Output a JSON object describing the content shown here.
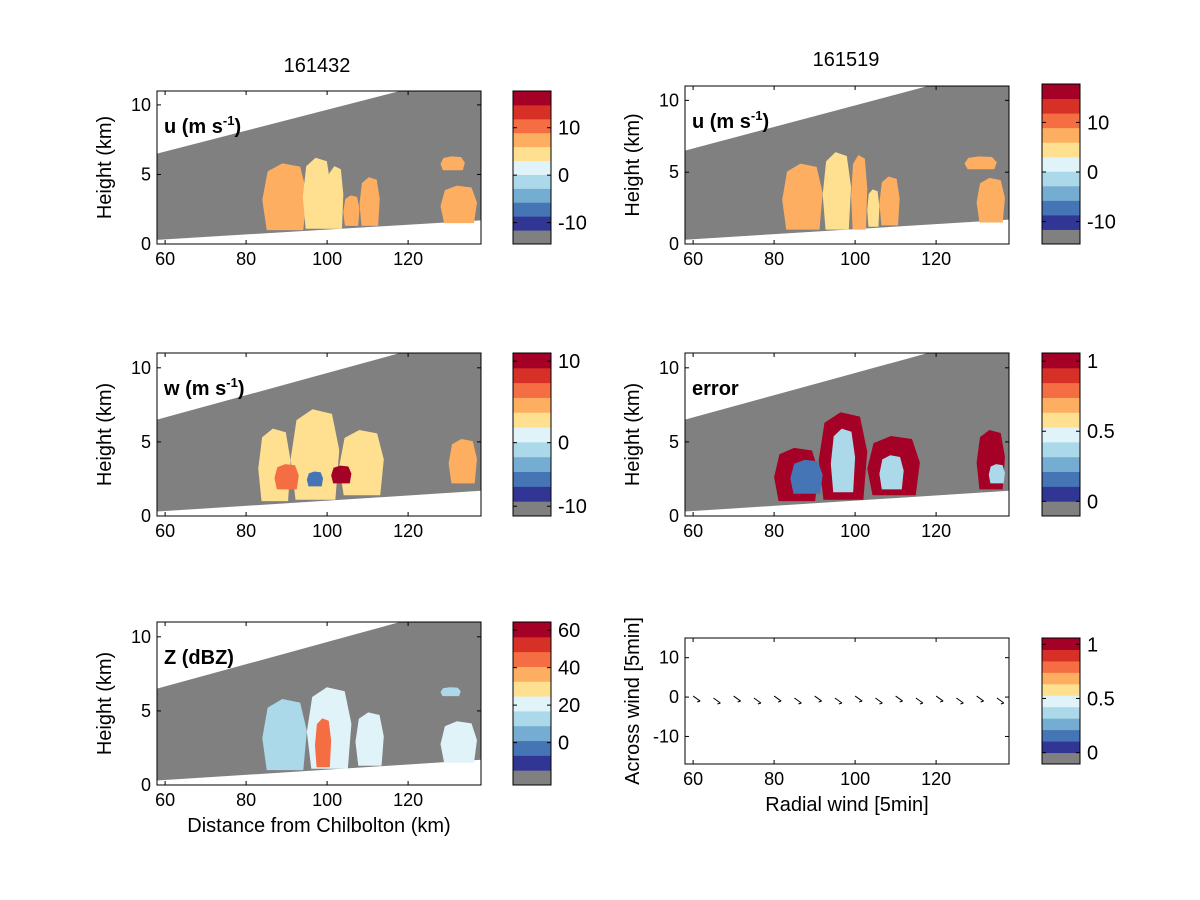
{
  "figure": {
    "column_titles": [
      "161432",
      "161519"
    ]
  },
  "colors": {
    "missing": "#808080",
    "panel_border": "#000000",
    "colormap": [
      "#313695",
      "#4575b4",
      "#74add1",
      "#abd9e9",
      "#e0f3f8",
      "#fee090",
      "#fdae61",
      "#f46d43",
      "#d73027",
      "#a50026"
    ]
  },
  "chart_data": [
    {
      "type": "heatmap",
      "panel": "top-left",
      "annotation": "u (m s",
      "annotation_sup": "-1",
      "annotation_close": ")",
      "xlabel": "",
      "ylabel": "Height (km)",
      "xlim": [
        58,
        138
      ],
      "ylim": [
        0,
        11
      ],
      "xticks": [
        60,
        80,
        100,
        120
      ],
      "yticks": [
        0,
        5,
        10
      ],
      "colorbar": {
        "ticks": [
          {
            "label": "10",
            "level": 0.76
          },
          {
            "label": "0",
            "level": 0.45
          },
          {
            "label": "-10",
            "level": 0.14
          }
        ]
      },
      "masked_region": "gray above radar beam, white below",
      "blobs": [
        {
          "x0": 84,
          "x1": 95,
          "y0": 1.0,
          "y1": 5.8,
          "value": 4
        },
        {
          "x0": 94,
          "x1": 101,
          "y0": 1.1,
          "y1": 6.2,
          "value": 0
        },
        {
          "x0": 100,
          "x1": 104,
          "y0": 1.1,
          "y1": 5.6,
          "value": 3
        },
        {
          "x0": 104,
          "x1": 108,
          "y0": 1.3,
          "y1": 3.5,
          "value": 5
        },
        {
          "x0": 108,
          "x1": 113,
          "y0": 1.3,
          "y1": 4.8,
          "value": 4
        },
        {
          "x0": 128,
          "x1": 137,
          "y0": 1.5,
          "y1": 4.2,
          "value": 4
        },
        {
          "x0": 128,
          "x1": 134,
          "y0": 5.3,
          "y1": 6.3,
          "value": 5
        }
      ]
    },
    {
      "type": "heatmap",
      "panel": "top-right",
      "annotation": "u (m s",
      "annotation_sup": "-1",
      "annotation_close": ")",
      "xlabel": "",
      "ylabel": "Height (km)",
      "xlim": [
        58,
        138
      ],
      "ylim": [
        0,
        11
      ],
      "xticks": [
        60,
        80,
        100,
        120
      ],
      "yticks": [
        0,
        5,
        10
      ],
      "colorbar": {
        "ticks": [
          {
            "label": "10",
            "level": 0.76
          },
          {
            "label": "0",
            "level": 0.45
          },
          {
            "label": "-10",
            "level": 0.14
          }
        ]
      },
      "masked_region": "gray above radar beam, white below",
      "blobs": [
        {
          "x0": 82,
          "x1": 92,
          "y0": 1.0,
          "y1": 5.6,
          "value": 4
        },
        {
          "x0": 92,
          "x1": 99,
          "y0": 1.0,
          "y1": 6.4,
          "value": 0
        },
        {
          "x0": 99,
          "x1": 103,
          "y0": 1.0,
          "y1": 6.2,
          "value": 4
        },
        {
          "x0": 103,
          "x1": 106,
          "y0": 1.2,
          "y1": 3.8,
          "value": 1
        },
        {
          "x0": 106,
          "x1": 111,
          "y0": 1.3,
          "y1": 4.7,
          "value": 4
        },
        {
          "x0": 130,
          "x1": 137,
          "y0": 1.5,
          "y1": 4.6,
          "value": 4
        },
        {
          "x0": 127,
          "x1": 135,
          "y0": 5.2,
          "y1": 6.1,
          "value": 5
        }
      ]
    },
    {
      "type": "heatmap",
      "panel": "middle-left",
      "annotation": "w (m s",
      "annotation_sup": "-1",
      "annotation_close": ")",
      "xlabel": "",
      "ylabel": "Height (km)",
      "xlim": [
        58,
        138
      ],
      "ylim": [
        0,
        11
      ],
      "xticks": [
        60,
        80,
        100,
        120
      ],
      "yticks": [
        0,
        5,
        10
      ],
      "colorbar": {
        "ticks": [
          {
            "label": "10",
            "level": 0.95
          },
          {
            "label": "0",
            "level": 0.45
          },
          {
            "label": "-10",
            "level": 0.06
          }
        ]
      },
      "masked_region": "gray above radar beam, white below",
      "blobs": [
        {
          "x0": 83,
          "x1": 91,
          "y0": 1.0,
          "y1": 5.9,
          "value": 0
        },
        {
          "x0": 91,
          "x1": 103,
          "y0": 1.1,
          "y1": 7.2,
          "value": 1
        },
        {
          "x0": 103,
          "x1": 114,
          "y0": 1.4,
          "y1": 5.8,
          "value": 0
        },
        {
          "x0": 87,
          "x1": 93,
          "y0": 1.8,
          "y1": 3.5,
          "value": 4
        },
        {
          "x0": 95,
          "x1": 99,
          "y0": 2.0,
          "y1": 3.0,
          "value": -8
        },
        {
          "x0": 101,
          "x1": 106,
          "y0": 2.2,
          "y1": 3.4,
          "value": 9
        },
        {
          "x0": 130,
          "x1": 137,
          "y0": 2.2,
          "y1": 5.2,
          "value": 3
        }
      ]
    },
    {
      "type": "heatmap",
      "panel": "middle-right",
      "annotation": "error",
      "annotation_sup": "",
      "annotation_close": "",
      "xlabel": "",
      "ylabel": "Height (km)",
      "xlim": [
        58,
        138
      ],
      "ylim": [
        0,
        11
      ],
      "xticks": [
        60,
        80,
        100,
        120
      ],
      "yticks": [
        0,
        5,
        10
      ],
      "colorbar": {
        "ticks": [
          {
            "label": "1",
            "level": 0.95
          },
          {
            "label": "0.5",
            "level": 0.52
          },
          {
            "label": "0",
            "level": 0.09
          }
        ]
      },
      "masked_region": "gray above radar beam, white below",
      "blobs": [
        {
          "x0": 80,
          "x1": 91,
          "y0": 1.0,
          "y1": 4.6,
          "value": 1
        },
        {
          "x0": 91,
          "x1": 103,
          "y0": 1.1,
          "y1": 7.0,
          "value": 1
        },
        {
          "x0": 103,
          "x1": 116,
          "y0": 1.4,
          "y1": 5.4,
          "value": 1
        },
        {
          "x0": 84,
          "x1": 92,
          "y0": 1.5,
          "y1": 3.8,
          "value": 0.15
        },
        {
          "x0": 94,
          "x1": 100,
          "y0": 1.6,
          "y1": 5.9,
          "value": 0.3
        },
        {
          "x0": 106,
          "x1": 112,
          "y0": 1.8,
          "y1": 4.1,
          "value": 0.3
        },
        {
          "x0": 130,
          "x1": 137,
          "y0": 1.8,
          "y1": 5.8,
          "value": 1
        },
        {
          "x0": 133,
          "x1": 137,
          "y0": 2.2,
          "y1": 3.5,
          "value": 0.3
        }
      ]
    },
    {
      "type": "heatmap",
      "panel": "bottom-left",
      "annotation": "Z (dBZ)",
      "annotation_sup": "",
      "annotation_close": "",
      "xlabel": "Distance from Chilbolton (km)",
      "ylabel": "Height (km)",
      "xlim": [
        58,
        138
      ],
      "ylim": [
        0,
        11
      ],
      "xticks": [
        60,
        80,
        100,
        120
      ],
      "yticks": [
        0,
        5,
        10
      ],
      "colorbar": {
        "ticks": [
          {
            "label": "60",
            "level": 0.95
          },
          {
            "label": "40",
            "level": 0.72
          },
          {
            "label": "20",
            "level": 0.49
          },
          {
            "label": "0",
            "level": 0.26
          }
        ]
      },
      "masked_region": "gray above radar beam, white below",
      "blobs": [
        {
          "x0": 84,
          "x1": 95,
          "y0": 1.0,
          "y1": 5.8,
          "value": 10
        },
        {
          "x0": 95,
          "x1": 106,
          "y0": 1.1,
          "y1": 6.6,
          "value": 18
        },
        {
          "x0": 97,
          "x1": 101,
          "y0": 1.2,
          "y1": 4.5,
          "value": 38
        },
        {
          "x0": 107,
          "x1": 114,
          "y0": 1.3,
          "y1": 4.9,
          "value": 15
        },
        {
          "x0": 128,
          "x1": 137,
          "y0": 1.5,
          "y1": 4.3,
          "value": 15
        },
        {
          "x0": 128,
          "x1": 133,
          "y0": 6.0,
          "y1": 6.6,
          "value": 5
        }
      ]
    },
    {
      "type": "scatter",
      "panel": "bottom-right",
      "annotation": "",
      "annotation_sup": "",
      "annotation_close": "",
      "xlabel": "Radial wind [5min]",
      "ylabel": "Across wind [5min]",
      "xlim": [
        58,
        138
      ],
      "ylim": [
        -17,
        15
      ],
      "xticks": [
        60,
        80,
        100,
        120
      ],
      "yticks": [
        -10,
        0,
        10
      ],
      "colorbar": {
        "ticks": [
          {
            "label": "1",
            "level": 0.95
          },
          {
            "label": "0.5",
            "level": 0.52
          },
          {
            "label": "0",
            "level": 0.09
          }
        ]
      },
      "x": [
        61,
        66,
        71,
        76,
        81,
        86,
        91,
        96,
        101,
        106,
        111,
        116,
        121,
        126,
        131,
        136
      ],
      "y": [
        -0.5,
        -1,
        -0.5,
        -1,
        -0.5,
        -1,
        -0.5,
        -1,
        -0.5,
        -1,
        -0.5,
        -1,
        -0.5,
        -1,
        -0.5,
        -1
      ]
    }
  ]
}
